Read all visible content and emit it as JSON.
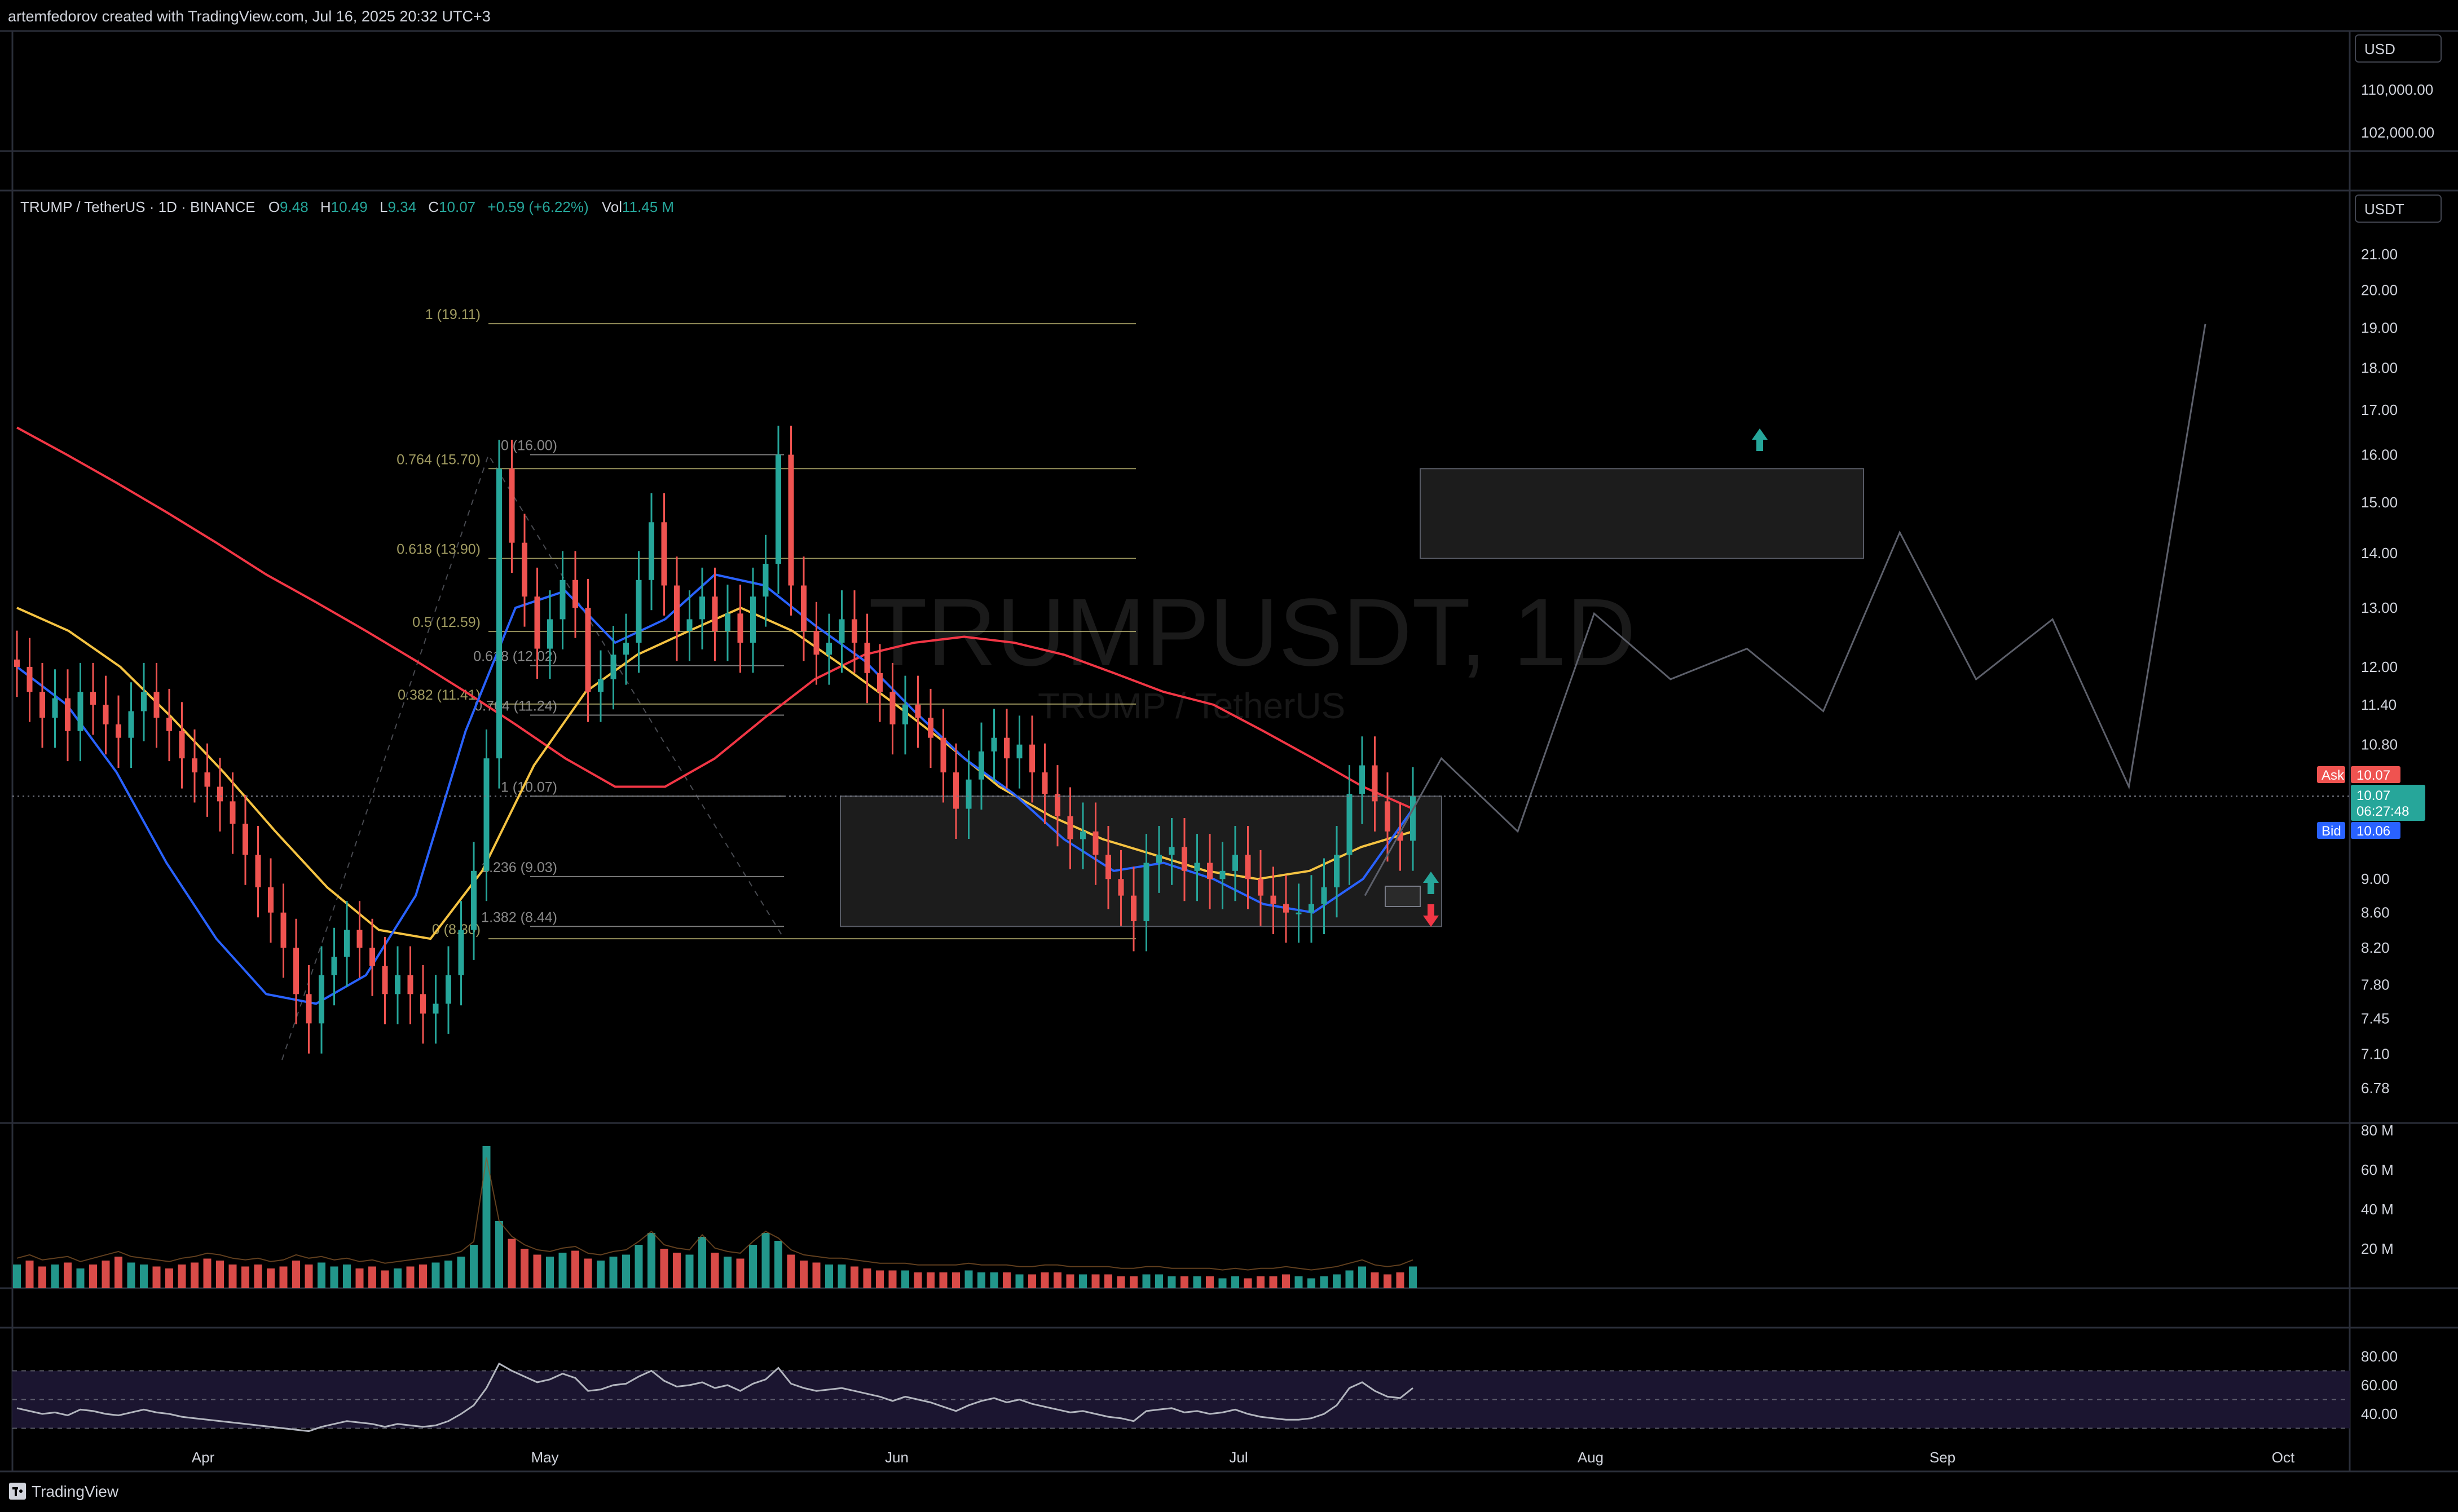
{
  "header": {
    "created_by": "artemfedorov created with TradingView.com, Jul 16, 2025 20:32 UTC+3"
  },
  "top_pane": {
    "currency": "USD",
    "ticks": [
      "110,000.00",
      "102,000.00"
    ]
  },
  "main_pane": {
    "currency": "USDT",
    "legend": {
      "symbol": "TRUMP / TetherUS · 1D · BINANCE",
      "o_label": "O",
      "o_value": "9.48",
      "h_label": "H",
      "h_value": "10.49",
      "l_label": "L",
      "l_value": "9.34",
      "c_label": "C",
      "c_value": "10.07",
      "change": "+0.59 (+6.22%)",
      "vol_label": "Vol",
      "vol_value": "11.45 M"
    },
    "watermark": "TRUMPUSDT, 1D",
    "watermark_sub": "TRUMP / TetherUS",
    "price_ticks": [
      "21.00",
      "20.00",
      "19.00",
      "18.00",
      "17.00",
      "16.00",
      "15.00",
      "14.00",
      "13.00",
      "12.00",
      "11.40",
      "10.80",
      "9.00",
      "8.60",
      "8.20",
      "7.80",
      "7.45",
      "7.10",
      "6.78"
    ],
    "ask_label": "Ask",
    "ask_value": "10.07",
    "last_value": "10.07",
    "countdown": "06:27:48",
    "bid_label": "Bid",
    "bid_value": "10.06",
    "fib_levels_a": [
      {
        "label": "1 (19.11)",
        "price": 19.11
      },
      {
        "label": "0.764 (15.70)",
        "price": 15.7
      },
      {
        "label": "0.618 (13.90)",
        "price": 13.9
      },
      {
        "label": "0.5 (12.59)",
        "price": 12.59
      },
      {
        "label": "0.382 (11.41)",
        "price": 11.41
      },
      {
        "label": "0 (8.30)",
        "price": 8.3
      }
    ],
    "fib_levels_b": [
      {
        "label": "0 (16.00)",
        "price": 16.0
      },
      {
        "label": "0.618 (12.02)",
        "price": 12.02
      },
      {
        "label": "0.764 (11.24)",
        "price": 11.24
      },
      {
        "label": "1 (10.07)",
        "price": 10.07
      },
      {
        "label": "1.236 (9.03)",
        "price": 9.03
      },
      {
        "label": "1.382 (8.44)",
        "price": 8.44
      }
    ]
  },
  "volume_pane": {
    "ticks": [
      "80 M",
      "60 M",
      "40 M",
      "20 M"
    ]
  },
  "rsi_pane": {
    "ticks": [
      "80.00",
      "60.00",
      "40.00"
    ]
  },
  "time_axis": {
    "labels": [
      "Apr",
      "May",
      "Jun",
      "Jul",
      "Aug",
      "Sep",
      "Oct"
    ]
  },
  "footer": {
    "brand": "TradingView"
  },
  "colors": {
    "up": "#26a69a",
    "down": "#ef5350",
    "ema_fast": "#2962ff",
    "ema_mid": "#f5c342",
    "ema_slow": "#f23645",
    "fib_a": "#c9c27a",
    "fib_b": "#a3a3a3"
  },
  "chart_data": {
    "type": "candlestick",
    "symbol": "TRUMP / TetherUS",
    "interval": "1D",
    "exchange": "BINANCE",
    "scale": "log",
    "y_range": [
      6.6,
      21.5
    ],
    "x_labels": [
      "Apr",
      "May",
      "Jun",
      "Jul",
      "Aug",
      "Sep",
      "Oct"
    ],
    "approx_closes": [
      12.0,
      11.6,
      11.2,
      11.5,
      11.0,
      11.6,
      11.4,
      11.1,
      10.9,
      11.3,
      11.6,
      11.2,
      11.0,
      10.6,
      10.4,
      10.2,
      10.0,
      9.7,
      9.3,
      8.9,
      8.6,
      8.2,
      7.7,
      7.4,
      7.9,
      8.1,
      8.4,
      8.2,
      8.0,
      7.7,
      7.9,
      7.7,
      7.5,
      7.6,
      7.9,
      8.4,
      9.1,
      10.6,
      15.7,
      14.2,
      13.2,
      12.3,
      12.8,
      13.5,
      13.0,
      11.6,
      11.8,
      12.2,
      12.4,
      13.5,
      14.6,
      13.4,
      12.6,
      12.8,
      13.2,
      12.6,
      12.9,
      12.4,
      13.2,
      13.8,
      16.0,
      13.4,
      12.6,
      12.2,
      12.4,
      12.8,
      12.4,
      11.9,
      11.6,
      11.1,
      11.4,
      11.2,
      10.9,
      10.4,
      9.9,
      10.3,
      10.7,
      10.9,
      10.6,
      10.8,
      10.4,
      10.1,
      9.8,
      9.5,
      9.6,
      9.3,
      9.0,
      8.8,
      8.5,
      9.2,
      9.3,
      9.4,
      9.1,
      9.2,
      9.0,
      9.1,
      9.3,
      9.0,
      8.8,
      8.7,
      8.6,
      8.6,
      8.7,
      8.9,
      9.3,
      10.1,
      10.5,
      10.0,
      9.6,
      9.48,
      10.07
    ],
    "volume_approx_m": [
      12,
      14,
      11,
      12,
      13,
      10,
      12,
      14,
      16,
      13,
      12,
      11,
      10,
      12,
      13,
      15,
      14,
      12,
      11,
      12,
      10,
      11,
      14,
      12,
      13,
      11,
      12,
      10,
      11,
      9,
      10,
      11,
      12,
      13,
      14,
      16,
      22,
      72,
      34,
      25,
      20,
      17,
      16,
      18,
      19,
      15,
      14,
      16,
      17,
      22,
      28,
      20,
      18,
      17,
      26,
      18,
      16,
      15,
      22,
      28,
      24,
      17,
      14,
      13,
      12,
      12,
      11,
      10,
      9,
      9,
      9,
      8,
      8,
      8,
      8,
      9,
      8,
      8,
      8,
      7,
      7,
      8,
      8,
      7,
      7,
      7,
      7,
      6,
      6,
      7,
      7,
      6,
      6,
      6,
      6,
      5,
      6,
      5,
      6,
      6,
      7,
      6,
      5,
      6,
      7,
      9,
      11,
      8,
      7,
      8,
      11
    ],
    "rsi_approx": [
      44,
      42,
      40,
      41,
      39,
      43,
      42,
      40,
      39,
      41,
      43,
      41,
      40,
      38,
      37,
      36,
      35,
      34,
      33,
      32,
      31,
      30,
      29,
      28,
      31,
      33,
      35,
      34,
      33,
      31,
      33,
      32,
      31,
      32,
      35,
      40,
      46,
      58,
      75,
      70,
      66,
      62,
      64,
      68,
      65,
      56,
      57,
      60,
      61,
      66,
      70,
      63,
      59,
      60,
      62,
      58,
      60,
      56,
      61,
      64,
      72,
      61,
      58,
      56,
      57,
      58,
      56,
      54,
      52,
      49,
      52,
      50,
      48,
      45,
      42,
      46,
      49,
      51,
      48,
      50,
      47,
      45,
      43,
      41,
      42,
      40,
      38,
      37,
      35,
      42,
      43,
      44,
      41,
      42,
      40,
      41,
      43,
      40,
      38,
      37,
      36,
      36,
      37,
      40,
      46,
      58,
      62,
      56,
      52,
      51,
      58
    ],
    "ema_slow_approx": [
      16.6,
      16.0,
      15.4,
      14.8,
      14.2,
      13.6,
      13.1,
      12.6,
      12.1,
      11.6,
      11.1,
      10.6,
      10.2,
      10.2,
      10.6,
      11.2,
      11.8,
      12.2,
      12.4,
      12.5,
      12.4,
      12.2,
      11.9,
      11.6,
      11.4,
      11.0,
      10.6,
      10.2,
      9.9
    ],
    "ema_mid_approx": [
      13.0,
      12.6,
      12.0,
      11.2,
      10.4,
      9.6,
      8.9,
      8.4,
      8.3,
      9.1,
      10.5,
      11.6,
      12.2,
      12.6,
      13.0,
      12.6,
      12.0,
      11.4,
      10.8,
      10.2,
      9.8,
      9.5,
      9.3,
      9.1,
      9.0,
      9.1,
      9.4,
      9.6
    ],
    "ema_fast_approx": [
      12.0,
      11.4,
      10.4,
      9.2,
      8.3,
      7.7,
      7.6,
      7.9,
      8.8,
      11.0,
      13.0,
      13.3,
      12.4,
      12.8,
      13.6,
      13.4,
      12.7,
      12.1,
      11.3,
      10.6,
      10.1,
      9.5,
      9.1,
      9.2,
      9.0,
      8.7,
      8.6,
      9.0,
      9.9
    ],
    "fib_retracement_a": [
      19.11,
      15.7,
      13.9,
      12.59,
      11.41,
      8.3
    ],
    "fib_extension_b": [
      16.0,
      12.02,
      11.24,
      10.07,
      9.03,
      8.44
    ],
    "zones": [
      {
        "from_price": 8.44,
        "to_price": 10.07
      },
      {
        "from_price": 13.9,
        "to_price": 15.7
      }
    ],
    "projection_path_prices": [
      8.8,
      10.6,
      9.6,
      12.9,
      11.8,
      12.3,
      11.3,
      14.4,
      11.8,
      12.8,
      10.2,
      19.1
    ],
    "last_price": 10.07
  }
}
